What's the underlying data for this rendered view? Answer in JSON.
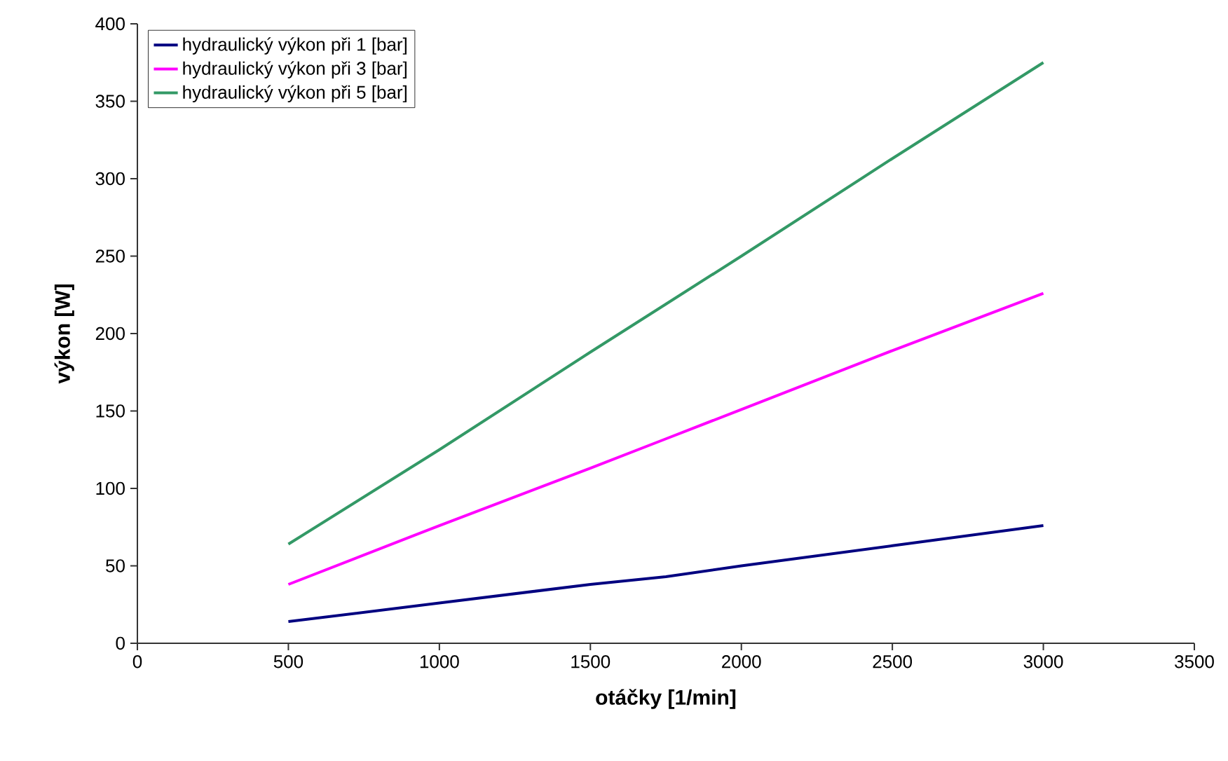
{
  "chart_data": {
    "type": "line",
    "xlabel": "otáčky [1/min]",
    "ylabel": "výkon [W]",
    "x": [
      500,
      1000,
      1500,
      1750,
      2000,
      2500,
      3000
    ],
    "series": [
      {
        "name": "hydraulický výkon při 1 [bar]",
        "color": "#000080",
        "values": [
          14,
          26,
          38,
          43,
          50,
          63,
          76
        ]
      },
      {
        "name": "hydraulický výkon při 3 [bar]",
        "color": "#ff00ff",
        "values": [
          38,
          76,
          113,
          132,
          151,
          189,
          226
        ]
      },
      {
        "name": "hydraulický výkon při 5 [bar]",
        "color": "#339966",
        "values": [
          64,
          125,
          188,
          219,
          250,
          313,
          375
        ]
      }
    ],
    "xlim": [
      0,
      3500
    ],
    "xticks": [
      0,
      500,
      1000,
      1500,
      2000,
      2500,
      3000,
      3500
    ],
    "ylim": [
      0,
      400
    ],
    "yticks": [
      0,
      50,
      100,
      150,
      200,
      250,
      300,
      350,
      400
    ],
    "legend": "top left",
    "grid": false,
    "marker": "none",
    "line_style": "solid"
  }
}
